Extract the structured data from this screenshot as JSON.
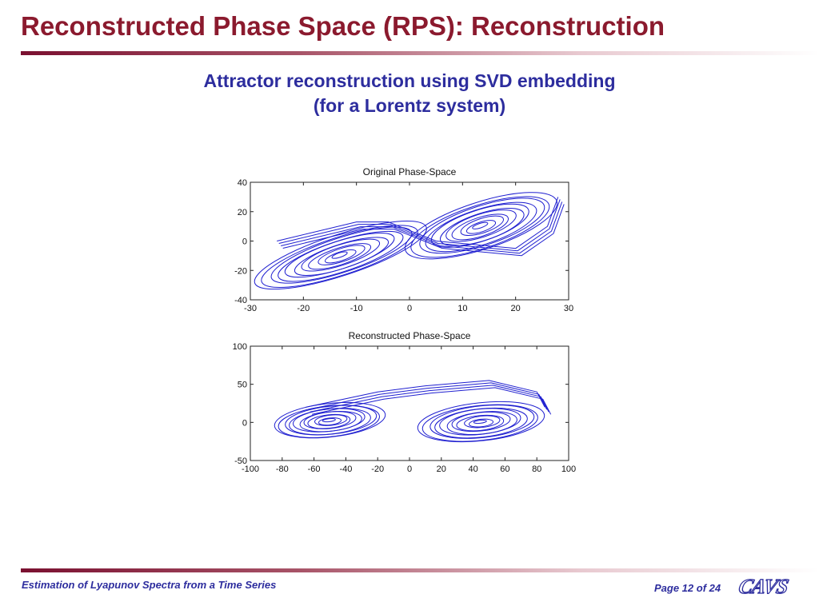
{
  "slide": {
    "title": "Reconstructed Phase Space (RPS): Reconstruction",
    "subtitle_line1": "Attractor reconstruction using SVD embedding",
    "subtitle_line2": "(for a Lorentz system)"
  },
  "footer": {
    "left_text": "Estimation of Lyapunov Spectra from a Time Series",
    "page_text": "Page 12 of 24",
    "logo_text": "CAVS"
  },
  "colors": {
    "title": "#8b1a2e",
    "accent": "#2d2d9e",
    "trajectory": "#1f1fd0"
  },
  "chart_data": [
    {
      "type": "line",
      "title": "Original Phase-Space",
      "xlabel": "",
      "ylabel": "",
      "xlim": [
        -30,
        30
      ],
      "ylim": [
        -40,
        40
      ],
      "xticks": [
        -30,
        -20,
        -10,
        0,
        10,
        20,
        30
      ],
      "yticks": [
        -40,
        -20,
        0,
        20,
        40
      ],
      "grid": false,
      "lobes": [
        {
          "center": [
            -13,
            -10
          ],
          "rx_min": 1.5,
          "rx_max": 17,
          "ry_min": 1.5,
          "ry_max": 14
        },
        {
          "center": [
            13.5,
            10
          ],
          "rx_min": 1.5,
          "rx_max": 15,
          "ry_min": 1.5,
          "ry_max": 16
        }
      ],
      "bridge_points": [
        [
          -25,
          0
        ],
        [
          -10,
          13
        ],
        [
          -4,
          13
        ],
        [
          5,
          0
        ],
        [
          20,
          -5
        ],
        [
          26,
          10
        ],
        [
          28,
          30
        ]
      ]
    },
    {
      "type": "line",
      "title": "Reconstructed Phase-Space",
      "xlabel": "",
      "ylabel": "",
      "xlim": [
        -100,
        100
      ],
      "ylim": [
        -50,
        100
      ],
      "xticks": [
        -100,
        -80,
        -60,
        -40,
        -20,
        0,
        20,
        40,
        60,
        80,
        100
      ],
      "yticks": [
        -50,
        0,
        50,
        100
      ],
      "grid": false,
      "lobes": [
        {
          "center": [
            -50,
            2
          ],
          "rx_min": 4,
          "rx_max": 35,
          "ry_min": 2,
          "ry_max": 22
        },
        {
          "center": [
            45,
            0
          ],
          "rx_min": 4,
          "rx_max": 40,
          "ry_min": 2,
          "ry_max": 25
        }
      ],
      "bridge_points": [
        [
          -65,
          20
        ],
        [
          -20,
          40
        ],
        [
          10,
          48
        ],
        [
          50,
          55
        ],
        [
          80,
          40
        ],
        [
          85,
          20
        ]
      ]
    }
  ]
}
